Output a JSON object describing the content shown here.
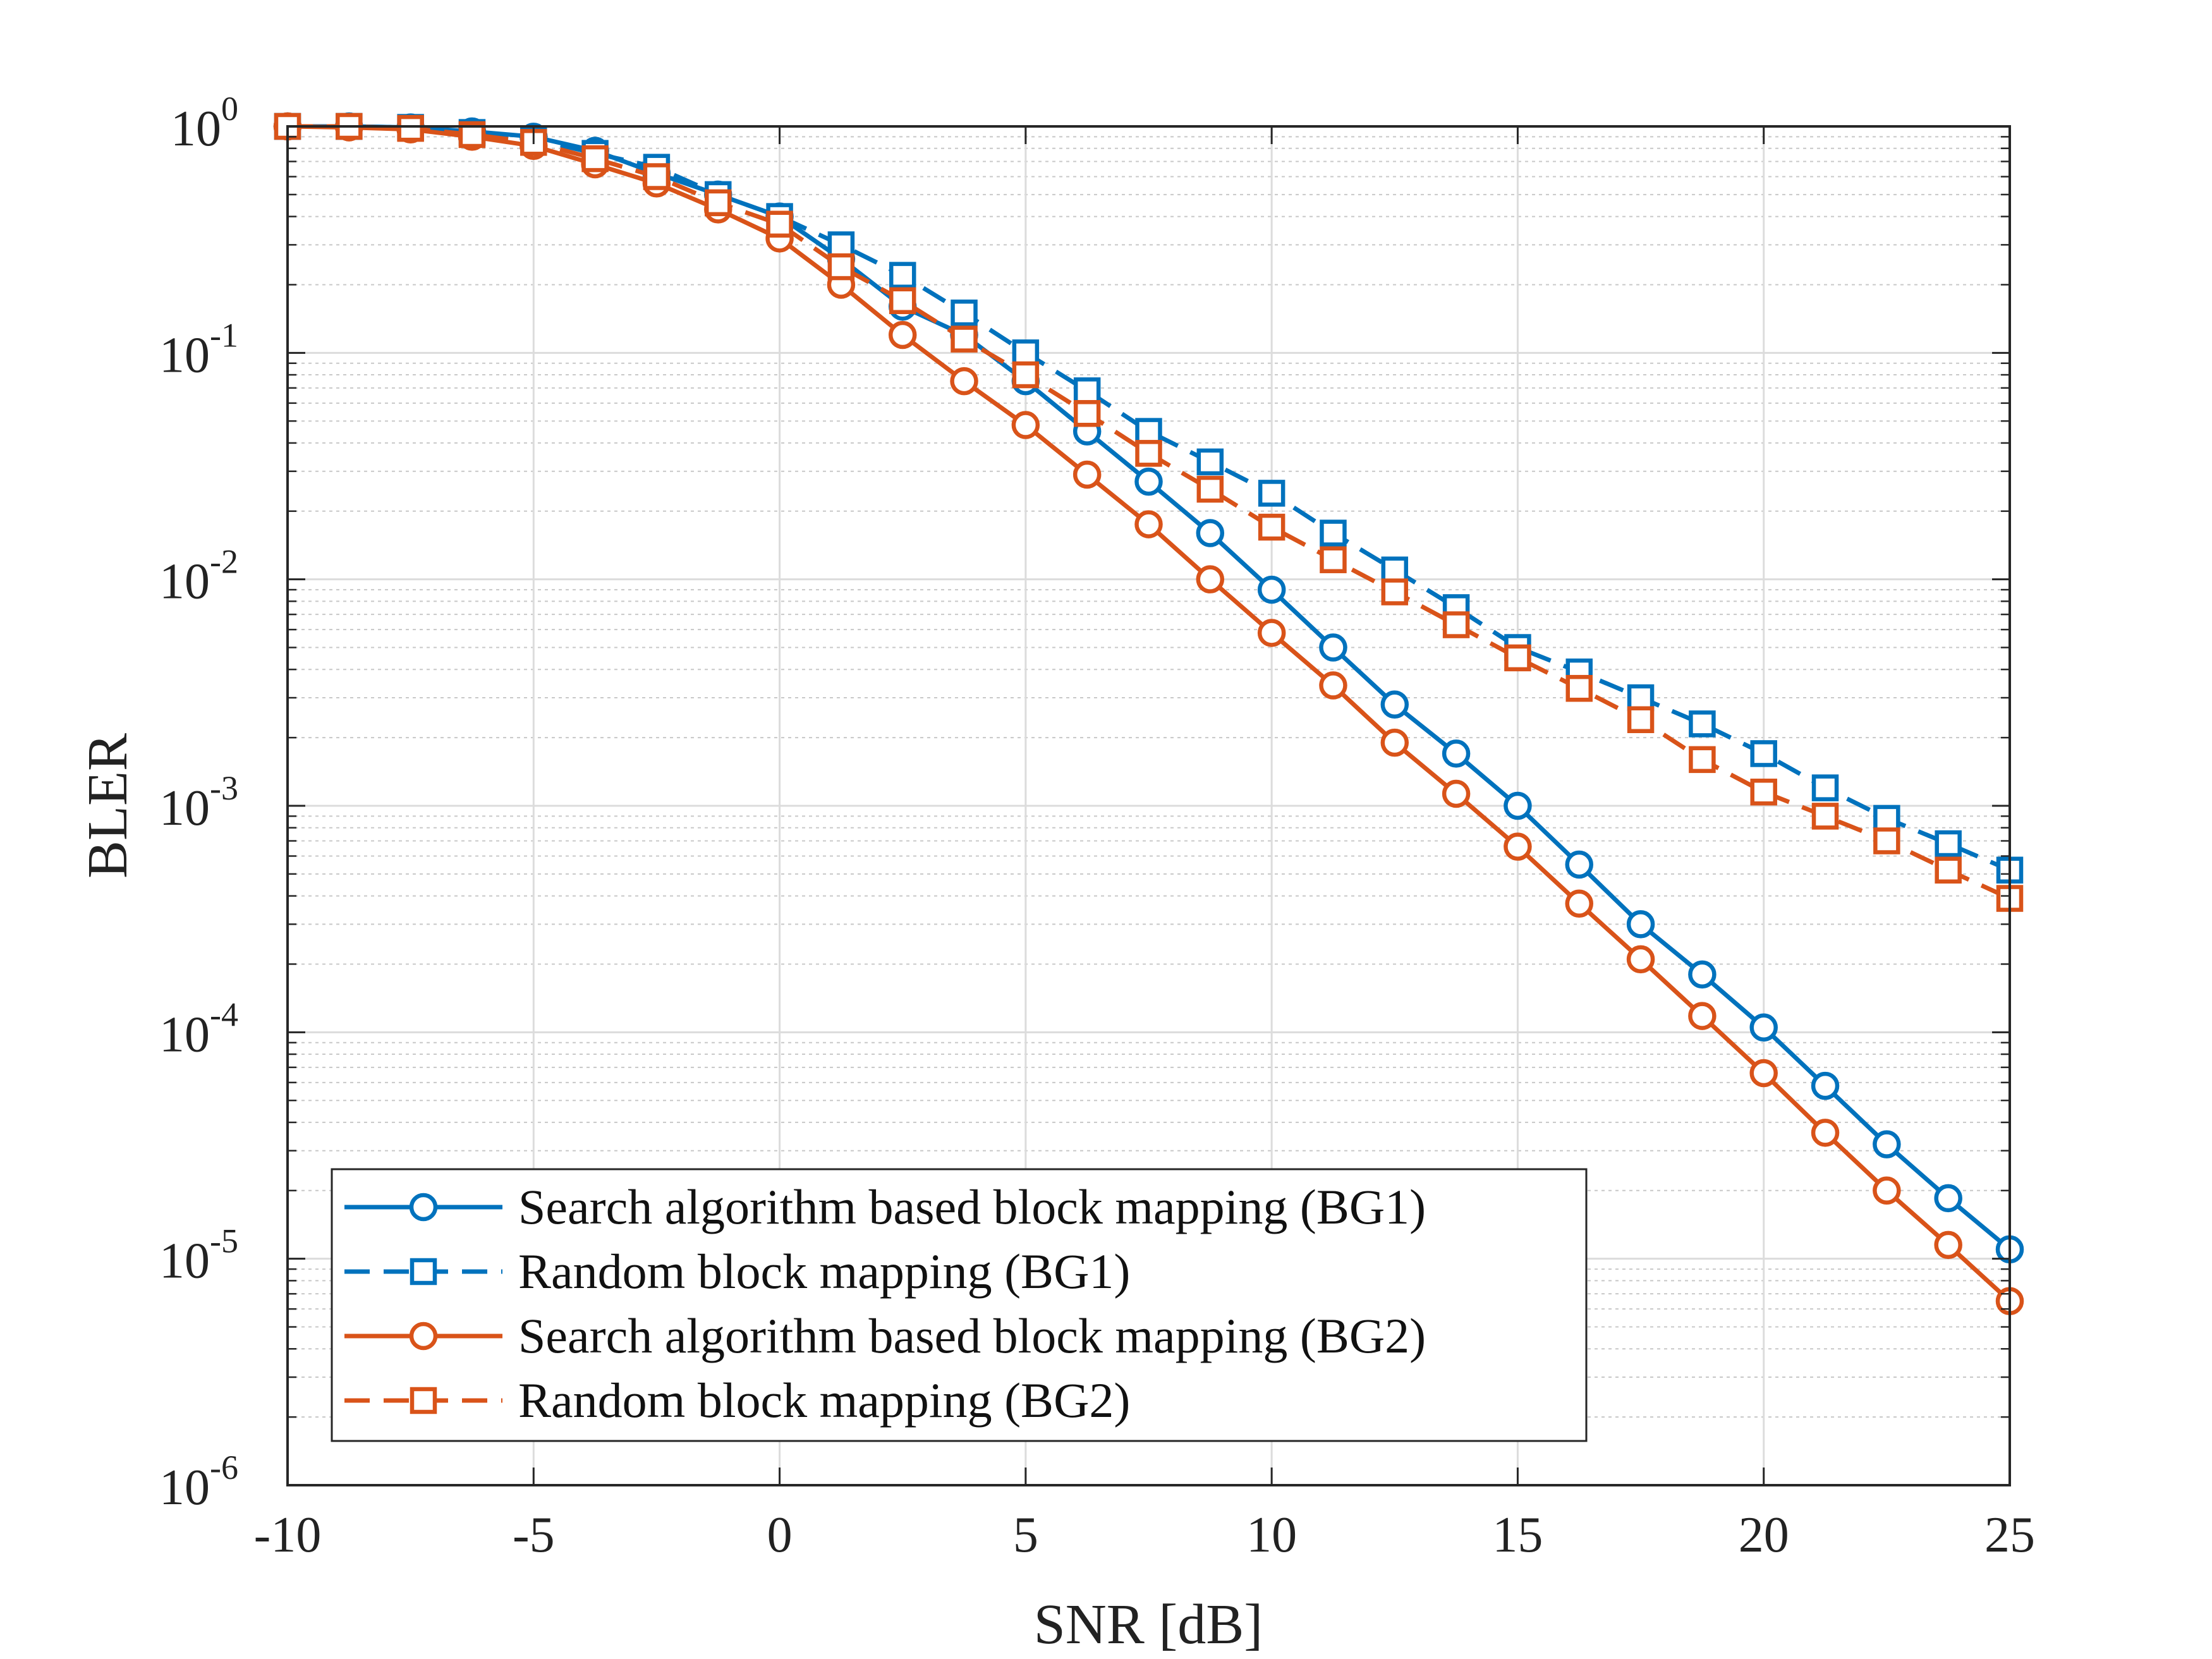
{
  "chart_data": {
    "type": "line",
    "title": "",
    "xlabel": "SNR [dB]",
    "ylabel": "BLER",
    "xlim": [
      -10,
      25
    ],
    "ylim": [
      1e-06,
      1
    ],
    "yscale": "log",
    "grid": true,
    "x_ticks": [
      "-10",
      "-5",
      "0",
      "5",
      "10",
      "15",
      "20",
      "25"
    ],
    "y_ticks": [
      {
        "base": "10",
        "exp": "0"
      },
      {
        "base": "10",
        "exp": "-1"
      },
      {
        "base": "10",
        "exp": "-2"
      },
      {
        "base": "10",
        "exp": "-3"
      },
      {
        "base": "10",
        "exp": "-4"
      },
      {
        "base": "10",
        "exp": "-5"
      },
      {
        "base": "10",
        "exp": "-6"
      }
    ],
    "legend_position": "bottom-left",
    "x": [
      -10,
      -8.75,
      -7.5,
      -6.25,
      -5,
      -3.75,
      -2.5,
      -1.25,
      0,
      1.25,
      2.5,
      3.75,
      5,
      6.25,
      7.5,
      8.75,
      10,
      11.25,
      12.5,
      13.75,
      15,
      16.25,
      17.5,
      18.75,
      20,
      21.25,
      22.5,
      23.75,
      25
    ],
    "series": [
      {
        "name": "Search algorithm based block mapping (BG1)",
        "color": "#0072BD",
        "line_style": "solid",
        "marker": "circle",
        "values": [
          1.0,
          1.0,
          0.99,
          0.95,
          0.9,
          0.78,
          0.62,
          0.5,
          0.4,
          0.26,
          0.16,
          0.12,
          0.075,
          0.045,
          0.027,
          0.016,
          0.009,
          0.005,
          0.0028,
          0.0017,
          0.001,
          0.00055,
          0.0003,
          0.00018,
          0.000105,
          5.8e-05,
          3.2e-05,
          1.85e-05,
          1.1e-05
        ]
      },
      {
        "name": "Random block mapping (BG1)",
        "color": "#0072BD",
        "line_style": "dashed",
        "marker": "square",
        "values": [
          1.0,
          1.0,
          0.99,
          0.94,
          0.88,
          0.76,
          0.66,
          0.5,
          0.4,
          0.3,
          0.22,
          0.15,
          0.1,
          0.068,
          0.045,
          0.033,
          0.024,
          0.016,
          0.011,
          0.0075,
          0.005,
          0.0039,
          0.003,
          0.0023,
          0.0017,
          0.0012,
          0.00088,
          0.00068,
          0.00052
        ]
      },
      {
        "name": "Search algorithm based block mapping (BG2)",
        "color": "#D95319",
        "line_style": "solid",
        "marker": "circle",
        "values": [
          1.0,
          0.99,
          0.97,
          0.9,
          0.82,
          0.68,
          0.56,
          0.43,
          0.32,
          0.2,
          0.12,
          0.075,
          0.048,
          0.029,
          0.0175,
          0.01,
          0.0058,
          0.0034,
          0.0019,
          0.00113,
          0.00066,
          0.00037,
          0.00021,
          0.000118,
          6.6e-05,
          3.6e-05,
          2e-05,
          1.15e-05,
          6.5e-06
        ]
      },
      {
        "name": "Random block mapping (BG2)",
        "color": "#D95319",
        "line_style": "dashed",
        "marker": "square",
        "values": [
          1.0,
          1.0,
          0.98,
          0.92,
          0.85,
          0.72,
          0.6,
          0.46,
          0.37,
          0.24,
          0.17,
          0.115,
          0.08,
          0.054,
          0.036,
          0.025,
          0.017,
          0.0122,
          0.0088,
          0.0063,
          0.0045,
          0.0033,
          0.0024,
          0.0016,
          0.00115,
          0.0009,
          0.0007,
          0.00052,
          0.00039
        ]
      }
    ]
  }
}
